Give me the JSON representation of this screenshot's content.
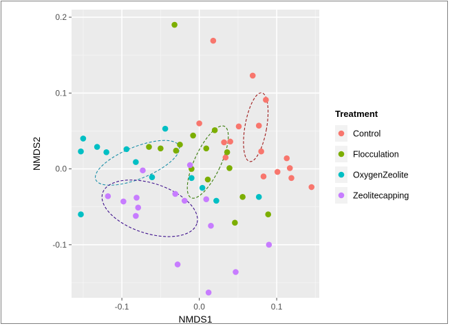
{
  "chart_data": {
    "type": "scatter",
    "xlabel": "NMDS1",
    "ylabel": "NMDS2",
    "xlim": [
      -0.165,
      0.155
    ],
    "ylim": [
      -0.17,
      0.21
    ],
    "x_ticks": [
      {
        "value": -0.1,
        "label": "-0.1"
      },
      {
        "value": 0.0,
        "label": "0.0"
      },
      {
        "value": 0.1,
        "label": "0.1"
      }
    ],
    "y_ticks": [
      {
        "value": -0.1,
        "label": "-0.1"
      },
      {
        "value": 0.0,
        "label": "0.0"
      },
      {
        "value": 0.1,
        "label": "0.1"
      },
      {
        "value": 0.2,
        "label": "0.2"
      }
    ],
    "grid": true,
    "legend": {
      "title": "Treatment",
      "placement": "right",
      "entries": [
        "Control",
        "Flocculation",
        "OxygenZeolite",
        "Zeolitecapping"
      ]
    },
    "series": [
      {
        "name": "Control",
        "color": "#f8766d",
        "ellipse_color": "#9e1a1a",
        "ellipse": {
          "cx": 0.073,
          "cy": 0.055,
          "rx": 0.014,
          "ry": 0.046,
          "angle": 10
        },
        "points": [
          [
            0.018,
            0.169
          ],
          [
            0.069,
            0.123
          ],
          [
            0.086,
            0.091
          ],
          [
            0.077,
            0.057
          ],
          [
            0.051,
            0.056
          ],
          [
            0.0,
            0.06
          ],
          [
            0.032,
            0.035
          ],
          [
            0.04,
            0.036
          ],
          [
            0.08,
            0.023
          ],
          [
            0.034,
            0.015
          ],
          [
            0.113,
            0.014
          ],
          [
            0.083,
            -0.01
          ],
          [
            0.101,
            -0.004
          ],
          [
            0.117,
            0.001
          ],
          [
            0.119,
            -0.012
          ],
          [
            0.145,
            -0.024
          ]
        ]
      },
      {
        "name": "Flocculation",
        "color": "#7cae00",
        "ellipse_color": "#3a7d0b",
        "ellipse": {
          "cx": 0.011,
          "cy": 0.009,
          "rx": 0.017,
          "ry": 0.052,
          "angle": 25
        },
        "points": [
          [
            -0.032,
            0.19
          ],
          [
            -0.065,
            0.029
          ],
          [
            -0.05,
            0.027
          ],
          [
            -0.025,
            0.032
          ],
          [
            -0.03,
            0.024
          ],
          [
            -0.008,
            0.044
          ],
          [
            0.02,
            0.051
          ],
          [
            0.009,
            0.027
          ],
          [
            0.036,
            0.022
          ],
          [
            0.039,
            0.001
          ],
          [
            -0.01,
            0.0
          ],
          [
            0.011,
            -0.014
          ],
          [
            0.056,
            -0.037
          ],
          [
            0.089,
            -0.06
          ],
          [
            0.046,
            -0.071
          ]
        ]
      },
      {
        "name": "OxygenZeolite",
        "color": "#00bfc4",
        "ellipse_color": "#1a8fa8",
        "ellipse": {
          "cx": -0.08,
          "cy": 0.008,
          "rx": 0.058,
          "ry": 0.021,
          "angle": 338
        },
        "points": [
          [
            -0.15,
            0.04
          ],
          [
            -0.153,
            0.023
          ],
          [
            -0.132,
            0.029
          ],
          [
            -0.12,
            0.022
          ],
          [
            -0.094,
            0.026
          ],
          [
            -0.082,
            0.009
          ],
          [
            -0.044,
            0.053
          ],
          [
            -0.061,
            -0.011
          ],
          [
            -0.01,
            -0.012
          ],
          [
            0.004,
            -0.025
          ],
          [
            0.022,
            -0.042
          ],
          [
            0.077,
            -0.037
          ],
          [
            -0.153,
            -0.06
          ]
        ]
      },
      {
        "name": "Zeolitecapping",
        "color": "#c77cff",
        "ellipse_color": "#3d0f8c",
        "ellipse": {
          "cx": -0.064,
          "cy": -0.052,
          "rx": 0.064,
          "ry": 0.033,
          "angle": 18
        },
        "points": [
          [
            -0.118,
            -0.036
          ],
          [
            -0.098,
            -0.043
          ],
          [
            -0.073,
            -0.002
          ],
          [
            -0.081,
            -0.038
          ],
          [
            -0.079,
            -0.051
          ],
          [
            -0.082,
            -0.062
          ],
          [
            -0.031,
            -0.033
          ],
          [
            -0.019,
            -0.042
          ],
          [
            -0.012,
            0.005
          ],
          [
            0.009,
            -0.04
          ],
          [
            0.015,
            -0.075
          ],
          [
            0.09,
            -0.1
          ],
          [
            -0.028,
            -0.126
          ],
          [
            0.047,
            -0.136
          ],
          [
            0.012,
            -0.163
          ]
        ]
      }
    ]
  }
}
